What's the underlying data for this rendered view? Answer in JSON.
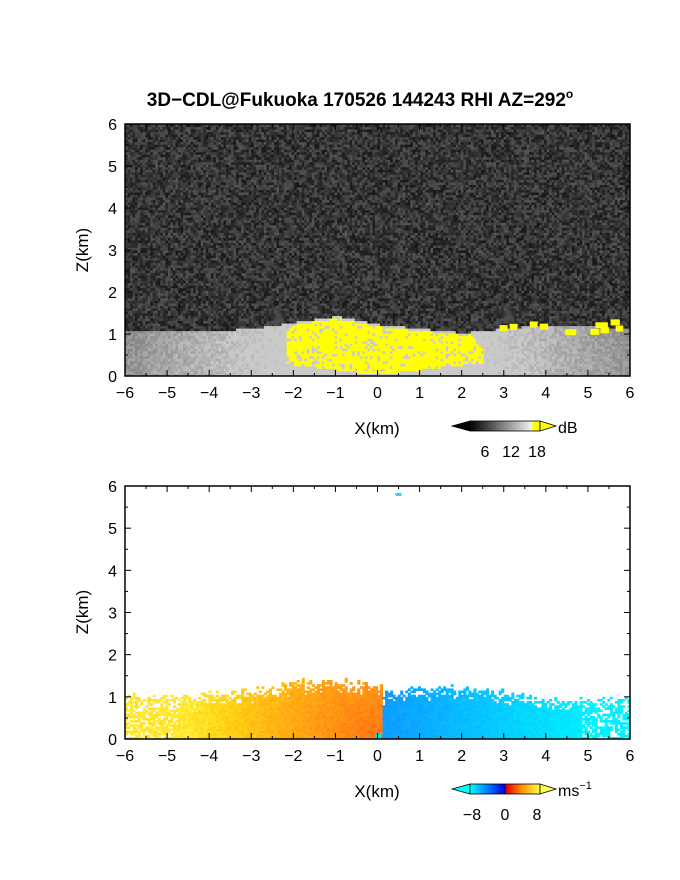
{
  "title": "3D−CDL@Fukuoka 170526 144243 RHI AZ=292",
  "title_superscript": "o",
  "chart_data": [
    {
      "type": "heatmap",
      "quantity": "backscatter intensity",
      "xlabel": "X(km)",
      "ylabel": "Z(km)",
      "xlim": [
        -6,
        6
      ],
      "ylim": [
        0,
        6
      ],
      "x_ticks": [
        -6,
        -5,
        -4,
        -3,
        -2,
        -1,
        0,
        1,
        2,
        3,
        4,
        5,
        6
      ],
      "y_ticks": [
        0,
        1,
        2,
        3,
        4,
        5,
        6
      ],
      "colorbar": {
        "unit": "dB",
        "tick_labels": [
          "6",
          "12",
          "18"
        ],
        "range": [
          0,
          20
        ],
        "palette": "grayscale (black to white), yellow above 18"
      },
      "features": [
        {
          "description": "noise background",
          "value_dB": 3,
          "z_range_km": [
            1.3,
            6
          ]
        },
        {
          "description": "boundary layer echo top",
          "points_x_km": [
            -6,
            -4,
            -3,
            -2,
            -1,
            0,
            1,
            2,
            3,
            4,
            5,
            6
          ],
          "points_z_km": [
            1.05,
            1.05,
            1.1,
            1.25,
            1.4,
            1.2,
            1.1,
            1.0,
            1.1,
            1.2,
            1.15,
            1.1
          ]
        },
        {
          "description": "strong echo (>18 dB) near lidar",
          "x_range_km": [
            -2.2,
            2.5
          ],
          "z_range_km": [
            0,
            1.3
          ]
        },
        {
          "description": "strong echo patches aloft",
          "x_range_km": [
            2.9,
            6
          ],
          "z_range_km": [
            1.0,
            1.3
          ]
        }
      ]
    },
    {
      "type": "heatmap",
      "quantity": "Doppler velocity",
      "xlabel": "X(km)",
      "ylabel": "Z(km)",
      "xlim": [
        -6,
        6
      ],
      "ylim": [
        0,
        6
      ],
      "x_ticks": [
        -6,
        -5,
        -4,
        -3,
        -2,
        -1,
        0,
        1,
        2,
        3,
        4,
        5,
        6
      ],
      "y_ticks": [
        0,
        1,
        2,
        3,
        4,
        5,
        6
      ],
      "colorbar": {
        "unit": "ms",
        "unit_superscript": "−1",
        "tick_labels": [
          "−8",
          "0",
          "8"
        ],
        "range": [
          -10,
          10
        ],
        "palette": "cyan-blue (negative) to red-orange-yellow (positive)"
      },
      "features": [
        {
          "description": "positive velocity region",
          "x_range_km": [
            -6,
            0.1
          ],
          "z_range_km": [
            0,
            1.45
          ],
          "value_ms": [
            3,
            9
          ]
        },
        {
          "description": "negative velocity region",
          "x_range_km": [
            0.1,
            6
          ],
          "z_range_km": [
            0,
            1.3
          ],
          "value_ms": [
            -9,
            -3
          ]
        },
        {
          "description": "isolated return aloft",
          "x_km": 0.5,
          "z_km": 5.8
        }
      ]
    }
  ]
}
